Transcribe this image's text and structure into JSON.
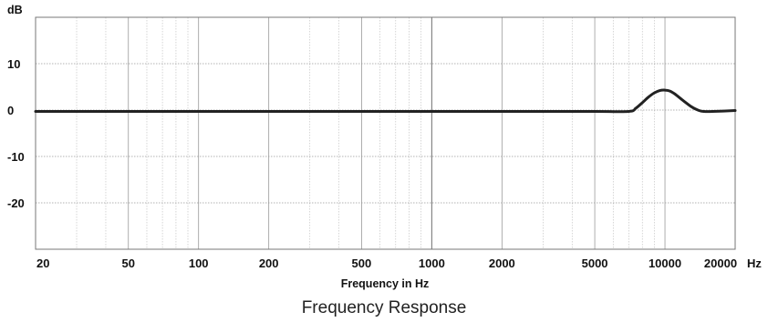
{
  "chart_data": {
    "type": "line",
    "title": "Frequency Response",
    "xlabel": "Frequency in Hz",
    "ylabel": "dB",
    "x_unit": "Hz",
    "x_scale": "log",
    "xlim": [
      20,
      20000
    ],
    "ylim": [
      -30,
      20
    ],
    "x_ticks": [
      20,
      50,
      100,
      200,
      500,
      1000,
      2000,
      5000,
      10000,
      20000
    ],
    "x_tick_labels": [
      "20",
      "50",
      "100",
      "200",
      "500",
      "1000",
      "2000",
      "5000",
      "10000",
      "20000"
    ],
    "y_ticks": [
      10,
      0,
      -10,
      -20
    ],
    "y_tick_labels": [
      "10",
      "0",
      "-10",
      "-20"
    ],
    "grid": true,
    "series": [
      {
        "color": "#222222",
        "x": [
          20,
          50,
          100,
          200,
          500,
          1000,
          2000,
          5000,
          7000,
          7500,
          8000,
          8500,
          9000,
          9500,
          10000,
          10500,
          11000,
          12000,
          13000,
          14000,
          14700,
          16000,
          20000
        ],
        "y": [
          -0.3,
          -0.3,
          -0.3,
          -0.3,
          -0.3,
          -0.3,
          -0.3,
          -0.3,
          -0.3,
          0.4,
          1.6,
          2.8,
          3.7,
          4.2,
          4.3,
          4.1,
          3.5,
          2.0,
          0.7,
          -0.1,
          -0.3,
          -0.3,
          -0.1
        ]
      }
    ]
  }
}
